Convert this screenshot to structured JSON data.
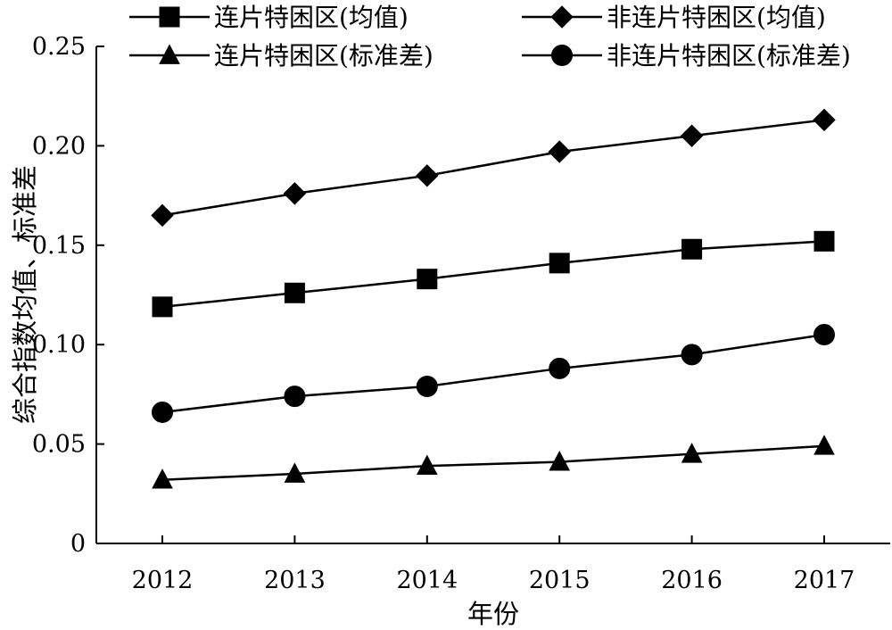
{
  "chart_data": {
    "type": "line",
    "xlabel": "年份",
    "ylabel": "综合指数均值、标准差",
    "categories": [
      "2012",
      "2013",
      "2014",
      "2015",
      "2016",
      "2017"
    ],
    "ylim": [
      0,
      0.25
    ],
    "yticks": [
      "0",
      "0.05",
      "0.10",
      "0.15",
      "0.20",
      "0.25"
    ],
    "grid": false,
    "legend_position": "top",
    "series": [
      {
        "name": "连片特困区(均值)",
        "marker": "square",
        "values": [
          0.119,
          0.126,
          0.133,
          0.141,
          0.148,
          0.152
        ]
      },
      {
        "name": "非连片特困区(均值)",
        "marker": "diamond",
        "values": [
          0.165,
          0.176,
          0.185,
          0.197,
          0.205,
          0.213
        ]
      },
      {
        "name": "连片特困区(标准差)",
        "marker": "triangle",
        "values": [
          0.032,
          0.035,
          0.039,
          0.041,
          0.045,
          0.049
        ]
      },
      {
        "name": "非连片特困区(标准差)",
        "marker": "circle",
        "values": [
          0.066,
          0.074,
          0.079,
          0.088,
          0.095,
          0.105
        ]
      }
    ],
    "colors": {
      "line": "#000000",
      "marker": "#000000",
      "background": "#ffffff"
    }
  }
}
